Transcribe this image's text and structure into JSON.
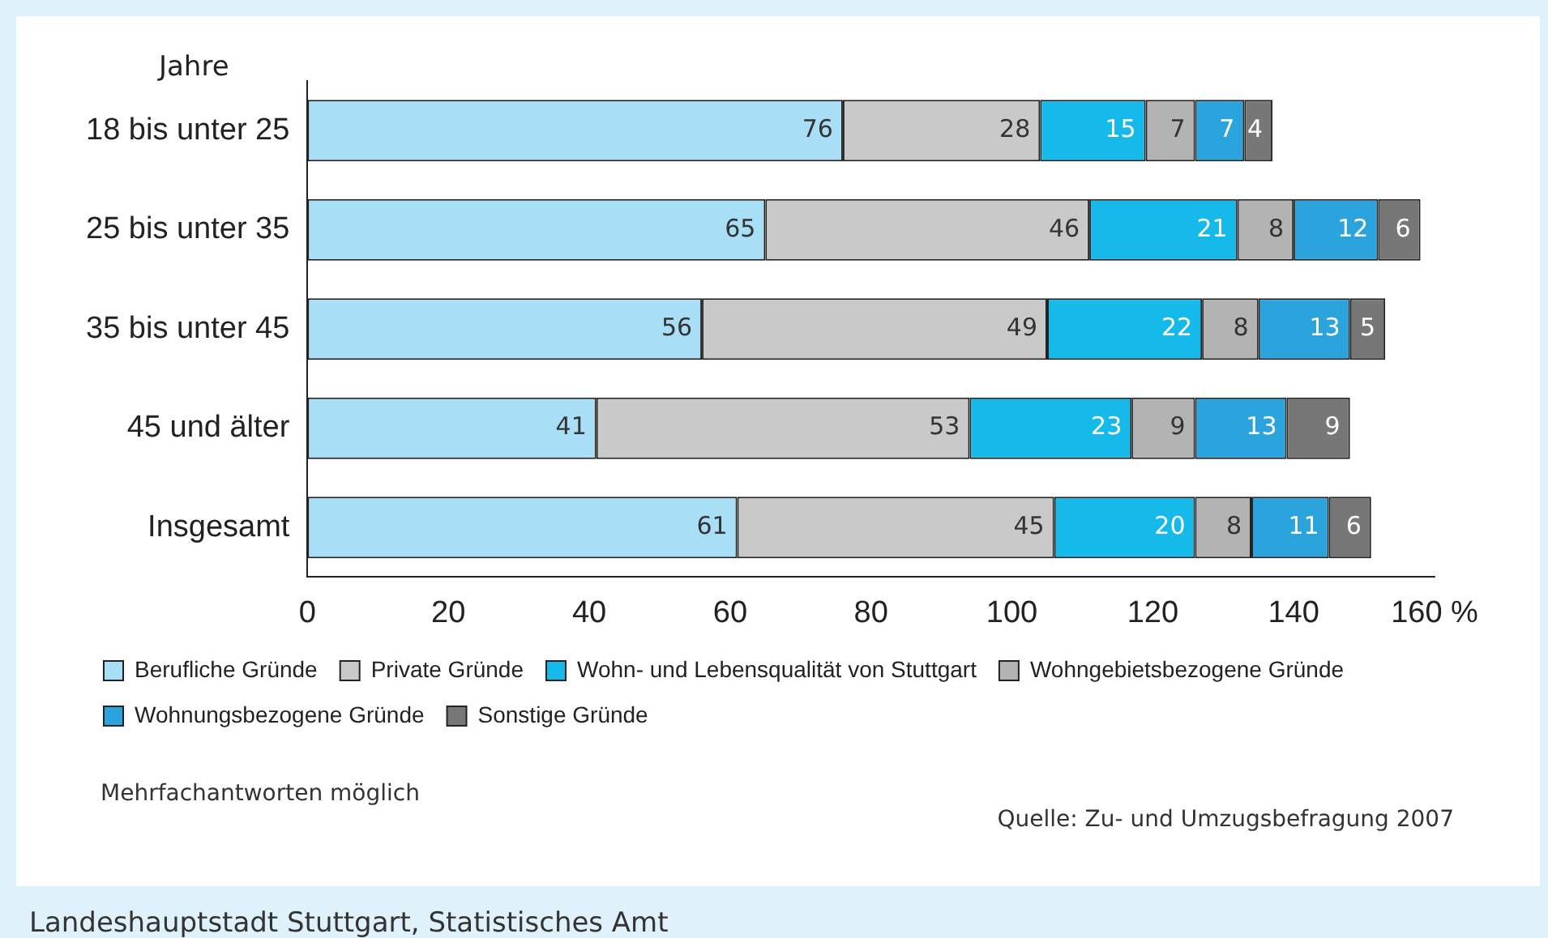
{
  "chart_data": {
    "type": "bar",
    "orientation": "horizontal",
    "stacked": true,
    "ylabel": "Jahre",
    "categories": [
      "18 bis unter 25",
      "25 bis unter 35",
      "35 bis unter 45",
      "45 und älter",
      "Insgesamt"
    ],
    "series": [
      {
        "name": "Berufliche Gründe",
        "color": "#a8dff7",
        "values": [
          76,
          65,
          56,
          41,
          61
        ]
      },
      {
        "name": "Private Gründe",
        "color": "#c9c9c9",
        "values": [
          28,
          46,
          49,
          53,
          45
        ]
      },
      {
        "name": "Wohn- und Lebensqualität von Stuttgart",
        "color": "#16baea",
        "values": [
          15,
          21,
          22,
          23,
          20
        ]
      },
      {
        "name": "Wohngebietsbezogene Gründe",
        "color": "#b3b3b3",
        "values": [
          7,
          8,
          8,
          9,
          8
        ]
      },
      {
        "name": "Wohnungsbezogene Gründe",
        "color": "#2ba3dd",
        "values": [
          7,
          12,
          13,
          13,
          11
        ]
      },
      {
        "name": "Sonstige Gründe",
        "color": "#777777",
        "values": [
          4,
          6,
          5,
          9,
          6
        ]
      }
    ],
    "xlim": [
      0,
      160
    ],
    "xticks": [
      0,
      20,
      40,
      60,
      80,
      100,
      120,
      140,
      {
        "value": 160,
        "label": "160 %"
      }
    ],
    "grid": false,
    "legend": "bottom",
    "data_labels": true,
    "annotations": [
      "Mehrfachantworten möglich",
      "Quelle: Zu- und Umzugsbefragung 2007",
      "Landeshauptstadt Stuttgart, Statistisches Amt"
    ]
  }
}
